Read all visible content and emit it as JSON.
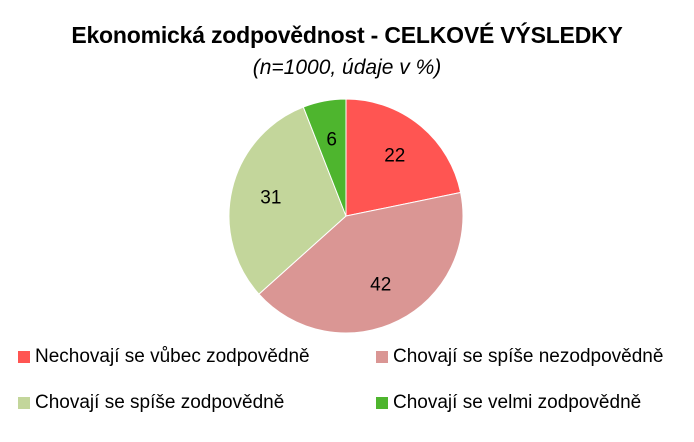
{
  "title": "Ekonomická zodpovědnost -  CELKOVÉ VÝSLEDKY",
  "subtitle": "(n=1000, údaje v %)",
  "chart_data": {
    "type": "pie",
    "title": "Ekonomická zodpovědnost -  CELKOVÉ VÝSLEDKY",
    "subtitle": "(n=1000, údaje v %)",
    "categories": [
      "Nechovají se vůbec zodpovědně",
      "Chovají se spíše nezodpovědně",
      "Chovají se spíše zodpovědně",
      "Chovají se velmi zodpovědně"
    ],
    "values": [
      22,
      42,
      31,
      6
    ],
    "labels": [
      "22",
      "42",
      "31",
      "6"
    ],
    "colors": [
      "#ff5552",
      "#da9694",
      "#c3d69b",
      "#4eb52e"
    ],
    "legend_position": "bottom"
  }
}
